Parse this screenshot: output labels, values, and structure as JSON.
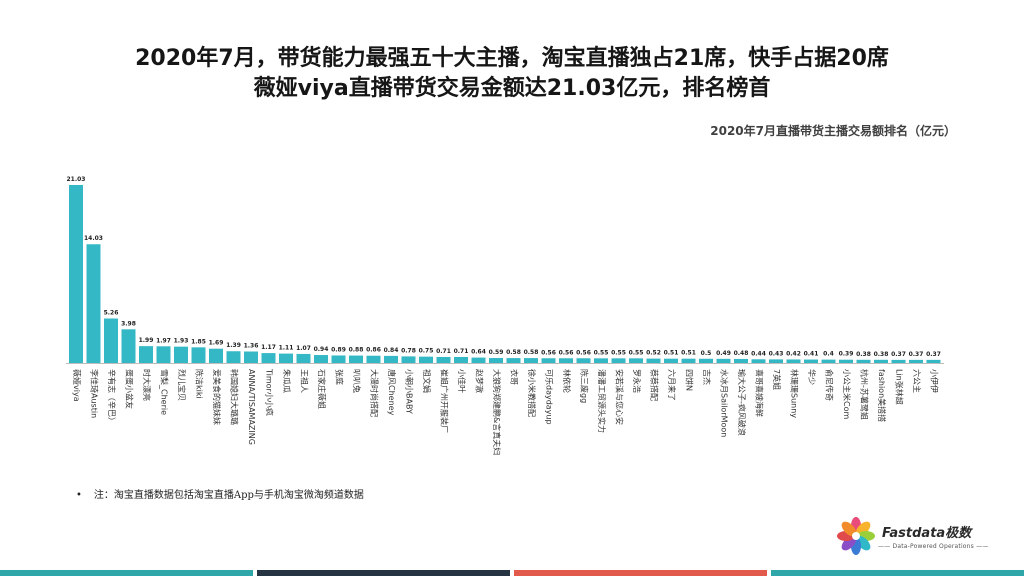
{
  "title_line1": "2020年7月，带货能力最强五十大主播，淘宝直播独占21席，快手占据20席",
  "title_line2": "薇娅viya直播带货交易金额达21.03亿元，排名榜首",
  "footnote": "注：淘宝直播数据包括淘宝直播App与手机淘宝微淘频道数据",
  "logo": {
    "name": "Fastdata极数",
    "tagline": "Data-Powered Operations",
    "icon": "flower-logo-icon"
  },
  "colors": {
    "bar": "#35b8c6",
    "bottom_bar": [
      "#2fa7a9",
      "#263342",
      "#e15a4b",
      "#2fa7a9"
    ]
  },
  "chart_data": {
    "type": "bar",
    "title": "2020年7月直播带货主播交易额排名（亿元）",
    "xlabel": "",
    "ylabel": "",
    "ylim": [
      0,
      21.03
    ],
    "grid": false,
    "legend": "none",
    "categories": [
      "薇娅viya",
      "李佳琦Austin",
      "辛有志（辛巴）",
      "蛋蛋小盆友",
      "时大漂亮",
      "雪梨_Cherie",
      "烈儿宝贝",
      "陈洁kiki",
      "爱美食的猫妹妹",
      "韩国媳妇大璐璐",
      "ANNA/TISAMAZING",
      "Timor小小疯",
      "朱瓜瓜",
      "王祖人",
      "石家庄薇姐",
      "张庭",
      "叭叭兔",
      "大漫时尚搭配",
      "唐风Cheney",
      "小朝小BABY",
      "祖文娟",
      "崔姐广州开服装厂",
      "小佳叶",
      "赵梦澈",
      "大狼狗郑建鹏&言真夫妇",
      "衣哥",
      "徐小米教搭配",
      "可乐daydayup",
      "林依轮",
      "陈三废gg",
      "潘潘工贸源头实力",
      "安若溪与您心安",
      "罗永浩",
      "蔡蔡搭配",
      "六月来了",
      "四饼N",
      "吉杰",
      "水冰月SailorMoon",
      "瑜大公子-疯风破浪",
      "喜哥喜嫂海鲜",
      "7英姐",
      "林珊珊Sunny",
      "华少",
      "俞尼传奇",
      "小公主米Com",
      "杭州-苏薯鹭姐",
      "fashion美搭搭",
      "Lin张林超",
      "六公主",
      "小伊伊"
    ],
    "values": [
      21.03,
      14.03,
      5.26,
      3.98,
      1.99,
      1.97,
      1.93,
      1.85,
      1.69,
      1.39,
      1.36,
      1.17,
      1.11,
      1.07,
      0.94,
      0.89,
      0.88,
      0.86,
      0.84,
      0.78,
      0.75,
      0.71,
      0.71,
      0.64,
      0.59,
      0.58,
      0.58,
      0.56,
      0.56,
      0.56,
      0.55,
      0.55,
      0.55,
      0.52,
      0.51,
      0.51,
      0.5,
      0.49,
      0.48,
      0.44,
      0.43,
      0.42,
      0.41,
      0.4,
      0.39,
      0.38,
      0.38,
      0.37,
      0.37,
      0.37
    ]
  }
}
